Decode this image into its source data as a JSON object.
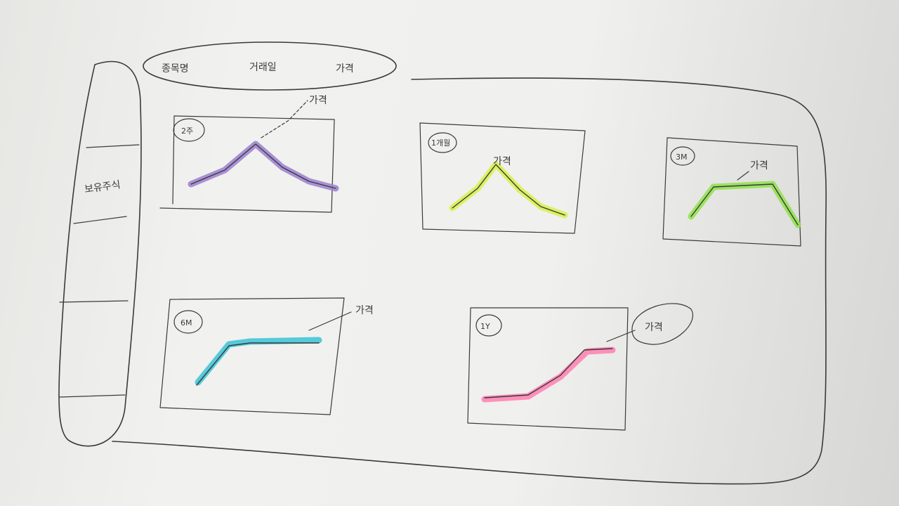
{
  "header": {
    "fields": [
      "종목명",
      "거래일",
      "가격"
    ]
  },
  "sidebar": {
    "items": [
      "보유주식"
    ]
  },
  "panels": [
    {
      "period": "2주",
      "callout": "가격",
      "color": "#9b7fd0"
    },
    {
      "period": "1개월",
      "callout": "가격",
      "color": "#d8f04a"
    },
    {
      "period": "3M",
      "callout": "가격",
      "color": "#8fe04a"
    },
    {
      "period": "6M",
      "callout": "가격",
      "color": "#39c3d6"
    },
    {
      "period": "1Y",
      "callout": "가격",
      "color": "#ff7fb0"
    }
  ]
}
